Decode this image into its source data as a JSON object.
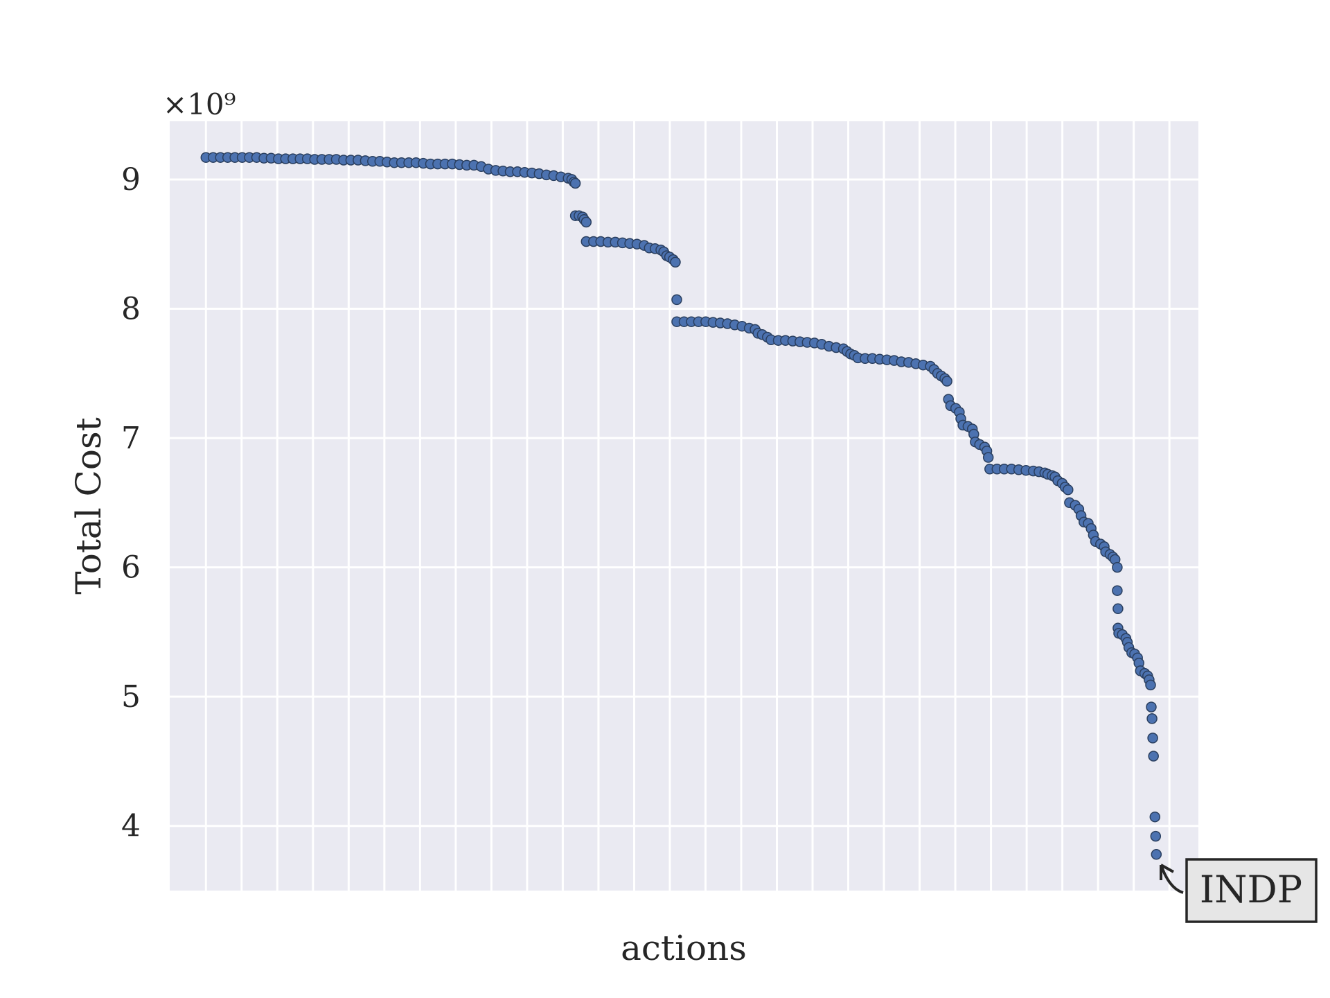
{
  "chart_data": {
    "type": "scatter",
    "xlabel": "actions",
    "ylabel": "Total Cost",
    "y_offset_label": "×10⁹",
    "xlim": [
      -50,
      1370
    ],
    "ylim": [
      3.5,
      9.45
    ],
    "y_ticks": [
      4,
      5,
      6,
      7,
      8,
      9
    ],
    "y_tick_labels": [
      "4",
      "5",
      "6",
      "7",
      "8",
      "9"
    ],
    "x_grid_count": 28,
    "grid": true,
    "background": "#eaeaf2",
    "grid_color": "#ffffff",
    "marker_color": "#4c72b0",
    "marker_edge_color": "#2a3f5f",
    "annotation": {
      "text": "INDP",
      "point": [
        1351,
        3.78
      ]
    },
    "points": [
      [
        0,
        9.17
      ],
      [
        10,
        9.17
      ],
      [
        20,
        9.17
      ],
      [
        30,
        9.17
      ],
      [
        40,
        9.17
      ],
      [
        50,
        9.17
      ],
      [
        60,
        9.17
      ],
      [
        70,
        9.17
      ],
      [
        80,
        9.165
      ],
      [
        90,
        9.165
      ],
      [
        100,
        9.16
      ],
      [
        110,
        9.16
      ],
      [
        120,
        9.16
      ],
      [
        130,
        9.16
      ],
      [
        140,
        9.16
      ],
      [
        150,
        9.155
      ],
      [
        160,
        9.155
      ],
      [
        170,
        9.155
      ],
      [
        180,
        9.155
      ],
      [
        190,
        9.15
      ],
      [
        200,
        9.15
      ],
      [
        210,
        9.15
      ],
      [
        220,
        9.145
      ],
      [
        230,
        9.14
      ],
      [
        240,
        9.14
      ],
      [
        250,
        9.135
      ],
      [
        260,
        9.13
      ],
      [
        270,
        9.13
      ],
      [
        280,
        9.13
      ],
      [
        290,
        9.13
      ],
      [
        300,
        9.125
      ],
      [
        310,
        9.12
      ],
      [
        320,
        9.12
      ],
      [
        330,
        9.12
      ],
      [
        340,
        9.12
      ],
      [
        350,
        9.115
      ],
      [
        360,
        9.11
      ],
      [
        370,
        9.11
      ],
      [
        380,
        9.1
      ],
      [
        390,
        9.08
      ],
      [
        400,
        9.07
      ],
      [
        410,
        9.065
      ],
      [
        420,
        9.06
      ],
      [
        430,
        9.06
      ],
      [
        440,
        9.055
      ],
      [
        450,
        9.05
      ],
      [
        460,
        9.045
      ],
      [
        470,
        9.035
      ],
      [
        480,
        9.03
      ],
      [
        490,
        9.02
      ],
      [
        500,
        9.01
      ],
      [
        505,
        9.0
      ],
      [
        508,
        8.98
      ],
      [
        510,
        8.97
      ],
      [
        510,
        8.72
      ],
      [
        515,
        8.72
      ],
      [
        520,
        8.71
      ],
      [
        522,
        8.69
      ],
      [
        525,
        8.67
      ],
      [
        525,
        8.52
      ],
      [
        535,
        8.52
      ],
      [
        545,
        8.52
      ],
      [
        555,
        8.515
      ],
      [
        565,
        8.515
      ],
      [
        575,
        8.51
      ],
      [
        585,
        8.505
      ],
      [
        595,
        8.5
      ],
      [
        605,
        8.49
      ],
      [
        612,
        8.47
      ],
      [
        620,
        8.465
      ],
      [
        628,
        8.455
      ],
      [
        632,
        8.44
      ],
      [
        636,
        8.41
      ],
      [
        640,
        8.4
      ],
      [
        645,
        8.38
      ],
      [
        648,
        8.36
      ],
      [
        650,
        8.07
      ],
      [
        650,
        7.9
      ],
      [
        660,
        7.9
      ],
      [
        670,
        7.9
      ],
      [
        680,
        7.9
      ],
      [
        690,
        7.9
      ],
      [
        700,
        7.895
      ],
      [
        710,
        7.89
      ],
      [
        720,
        7.885
      ],
      [
        730,
        7.875
      ],
      [
        740,
        7.865
      ],
      [
        750,
        7.85
      ],
      [
        758,
        7.84
      ],
      [
        762,
        7.81
      ],
      [
        768,
        7.8
      ],
      [
        775,
        7.78
      ],
      [
        780,
        7.76
      ],
      [
        790,
        7.755
      ],
      [
        800,
        7.755
      ],
      [
        810,
        7.75
      ],
      [
        820,
        7.745
      ],
      [
        830,
        7.74
      ],
      [
        840,
        7.735
      ],
      [
        850,
        7.725
      ],
      [
        860,
        7.71
      ],
      [
        870,
        7.7
      ],
      [
        880,
        7.69
      ],
      [
        885,
        7.67
      ],
      [
        890,
        7.65
      ],
      [
        895,
        7.64
      ],
      [
        900,
        7.62
      ],
      [
        910,
        7.615
      ],
      [
        920,
        7.615
      ],
      [
        930,
        7.61
      ],
      [
        940,
        7.605
      ],
      [
        950,
        7.6
      ],
      [
        960,
        7.59
      ],
      [
        970,
        7.585
      ],
      [
        980,
        7.575
      ],
      [
        990,
        7.565
      ],
      [
        1000,
        7.555
      ],
      [
        1005,
        7.53
      ],
      [
        1010,
        7.5
      ],
      [
        1015,
        7.48
      ],
      [
        1020,
        7.46
      ],
      [
        1023,
        7.44
      ],
      [
        1025,
        7.3
      ],
      [
        1028,
        7.25
      ],
      [
        1035,
        7.23
      ],
      [
        1040,
        7.2
      ],
      [
        1042,
        7.15
      ],
      [
        1045,
        7.1
      ],
      [
        1052,
        7.09
      ],
      [
        1058,
        7.07
      ],
      [
        1060,
        7.03
      ],
      [
        1062,
        6.97
      ],
      [
        1068,
        6.95
      ],
      [
        1075,
        6.93
      ],
      [
        1078,
        6.9
      ],
      [
        1080,
        6.85
      ],
      [
        1082,
        6.76
      ],
      [
        1092,
        6.76
      ],
      [
        1102,
        6.76
      ],
      [
        1112,
        6.76
      ],
      [
        1122,
        6.755
      ],
      [
        1132,
        6.75
      ],
      [
        1142,
        6.745
      ],
      [
        1150,
        6.74
      ],
      [
        1158,
        6.73
      ],
      [
        1162,
        6.72
      ],
      [
        1168,
        6.71
      ],
      [
        1172,
        6.7
      ],
      [
        1176,
        6.67
      ],
      [
        1182,
        6.65
      ],
      [
        1186,
        6.62
      ],
      [
        1190,
        6.6
      ],
      [
        1192,
        6.5
      ],
      [
        1200,
        6.48
      ],
      [
        1205,
        6.45
      ],
      [
        1208,
        6.4
      ],
      [
        1212,
        6.35
      ],
      [
        1218,
        6.34
      ],
      [
        1222,
        6.3
      ],
      [
        1225,
        6.25
      ],
      [
        1228,
        6.2
      ],
      [
        1235,
        6.18
      ],
      [
        1240,
        6.16
      ],
      [
        1242,
        6.12
      ],
      [
        1248,
        6.1
      ],
      [
        1252,
        6.08
      ],
      [
        1255,
        6.06
      ],
      [
        1258,
        6.0
      ],
      [
        1258,
        5.82
      ],
      [
        1259,
        5.68
      ],
      [
        1259,
        5.53
      ],
      [
        1260,
        5.49
      ],
      [
        1265,
        5.48
      ],
      [
        1270,
        5.45
      ],
      [
        1272,
        5.42
      ],
      [
        1274,
        5.38
      ],
      [
        1278,
        5.34
      ],
      [
        1282,
        5.33
      ],
      [
        1286,
        5.3
      ],
      [
        1288,
        5.26
      ],
      [
        1290,
        5.2
      ],
      [
        1296,
        5.18
      ],
      [
        1300,
        5.16
      ],
      [
        1302,
        5.13
      ],
      [
        1304,
        5.09
      ],
      [
        1305,
        4.92
      ],
      [
        1306,
        4.83
      ],
      [
        1307,
        4.68
      ],
      [
        1308,
        4.54
      ],
      [
        1310,
        4.07
      ],
      [
        1311,
        3.92
      ],
      [
        1312,
        3.78
      ]
    ]
  }
}
